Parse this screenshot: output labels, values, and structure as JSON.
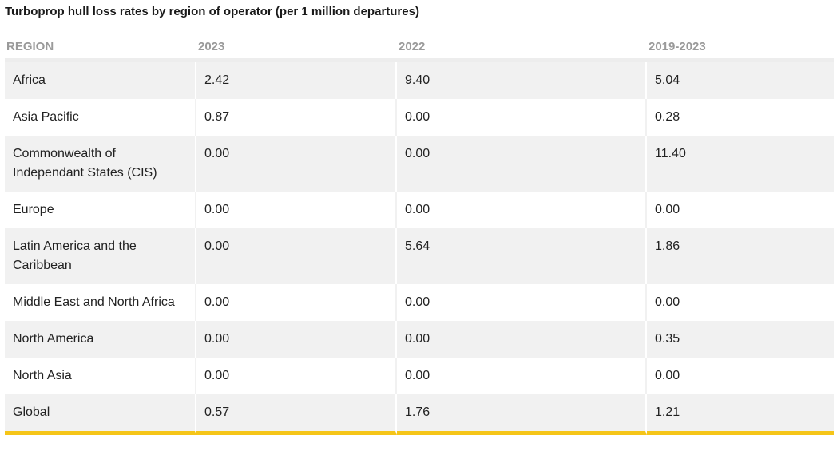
{
  "chart_data": {
    "type": "table",
    "title": "Turboprop hull loss rates by region of operator (per 1 million departures)",
    "columns": [
      "REGION",
      "2023",
      "2022",
      "2019-2023"
    ],
    "rows": [
      [
        "Africa",
        "2.42",
        "9.40",
        "5.04"
      ],
      [
        "Asia Pacific",
        "0.87",
        "0.00",
        "0.28"
      ],
      [
        "Commonwealth of Independant States (CIS)",
        "0.00",
        "0.00",
        "11.40"
      ],
      [
        "Europe",
        "0.00",
        "0.00",
        "0.00"
      ],
      [
        "Latin America and the Caribbean",
        "0.00",
        "5.64",
        "1.86"
      ],
      [
        "Middle East and North Africa",
        "0.00",
        "0.00",
        "0.00"
      ],
      [
        "North America",
        "0.00",
        "0.00",
        "0.35"
      ],
      [
        "North Asia",
        "0.00",
        "0.00",
        "0.00"
      ],
      [
        "Global",
        "0.57",
        "1.76",
        "1.21"
      ]
    ]
  },
  "colors": {
    "row_shade": "#f1f1f1",
    "header_text": "#9a9a9a",
    "accent_rule": "#f5c518"
  }
}
